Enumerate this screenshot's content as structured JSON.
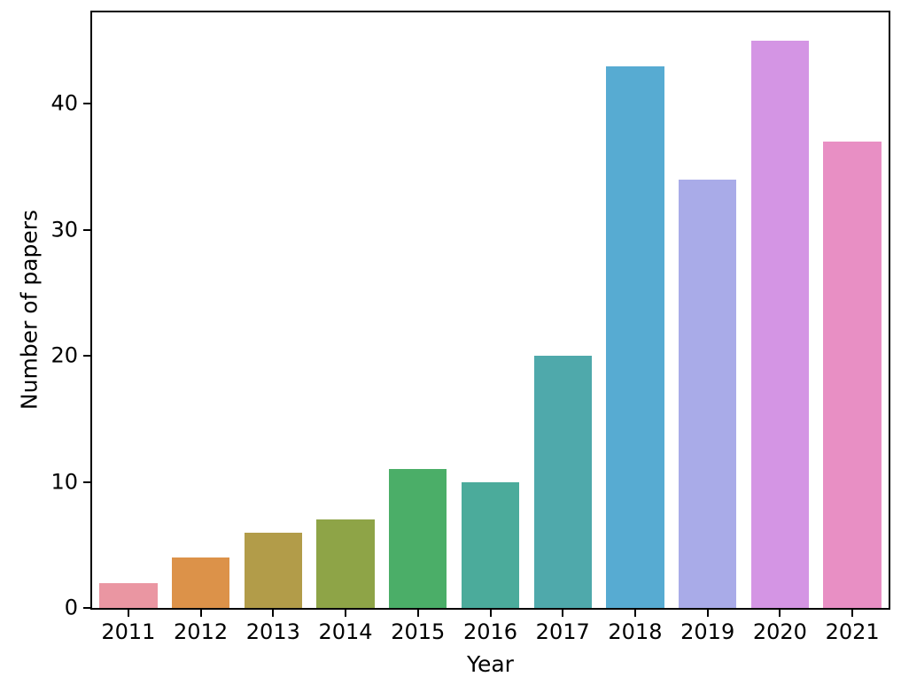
{
  "chart_data": {
    "type": "bar",
    "title": "",
    "xlabel": "Year",
    "ylabel": "Number of papers",
    "categories": [
      "2011",
      "2012",
      "2013",
      "2014",
      "2015",
      "2016",
      "2017",
      "2018",
      "2019",
      "2020",
      "2021"
    ],
    "values": [
      2,
      4,
      6,
      7,
      11,
      10,
      20,
      43,
      34,
      45,
      37
    ],
    "bar_colors": [
      "#ea96a2",
      "#dc9249",
      "#b29c49",
      "#8ea447",
      "#4bae68",
      "#4bab9b",
      "#4fa9ab",
      "#57abd2",
      "#a9abe8",
      "#d495e4",
      "#e88fc4"
    ],
    "yticks": [
      0,
      10,
      20,
      30,
      40
    ],
    "ylim": [
      0,
      47.25
    ],
    "xlim_slots": 11,
    "bar_width_fraction": 0.8,
    "grid": false,
    "legend_position": "none",
    "background_color": "#ffffff",
    "axis_color": "#000000"
  }
}
